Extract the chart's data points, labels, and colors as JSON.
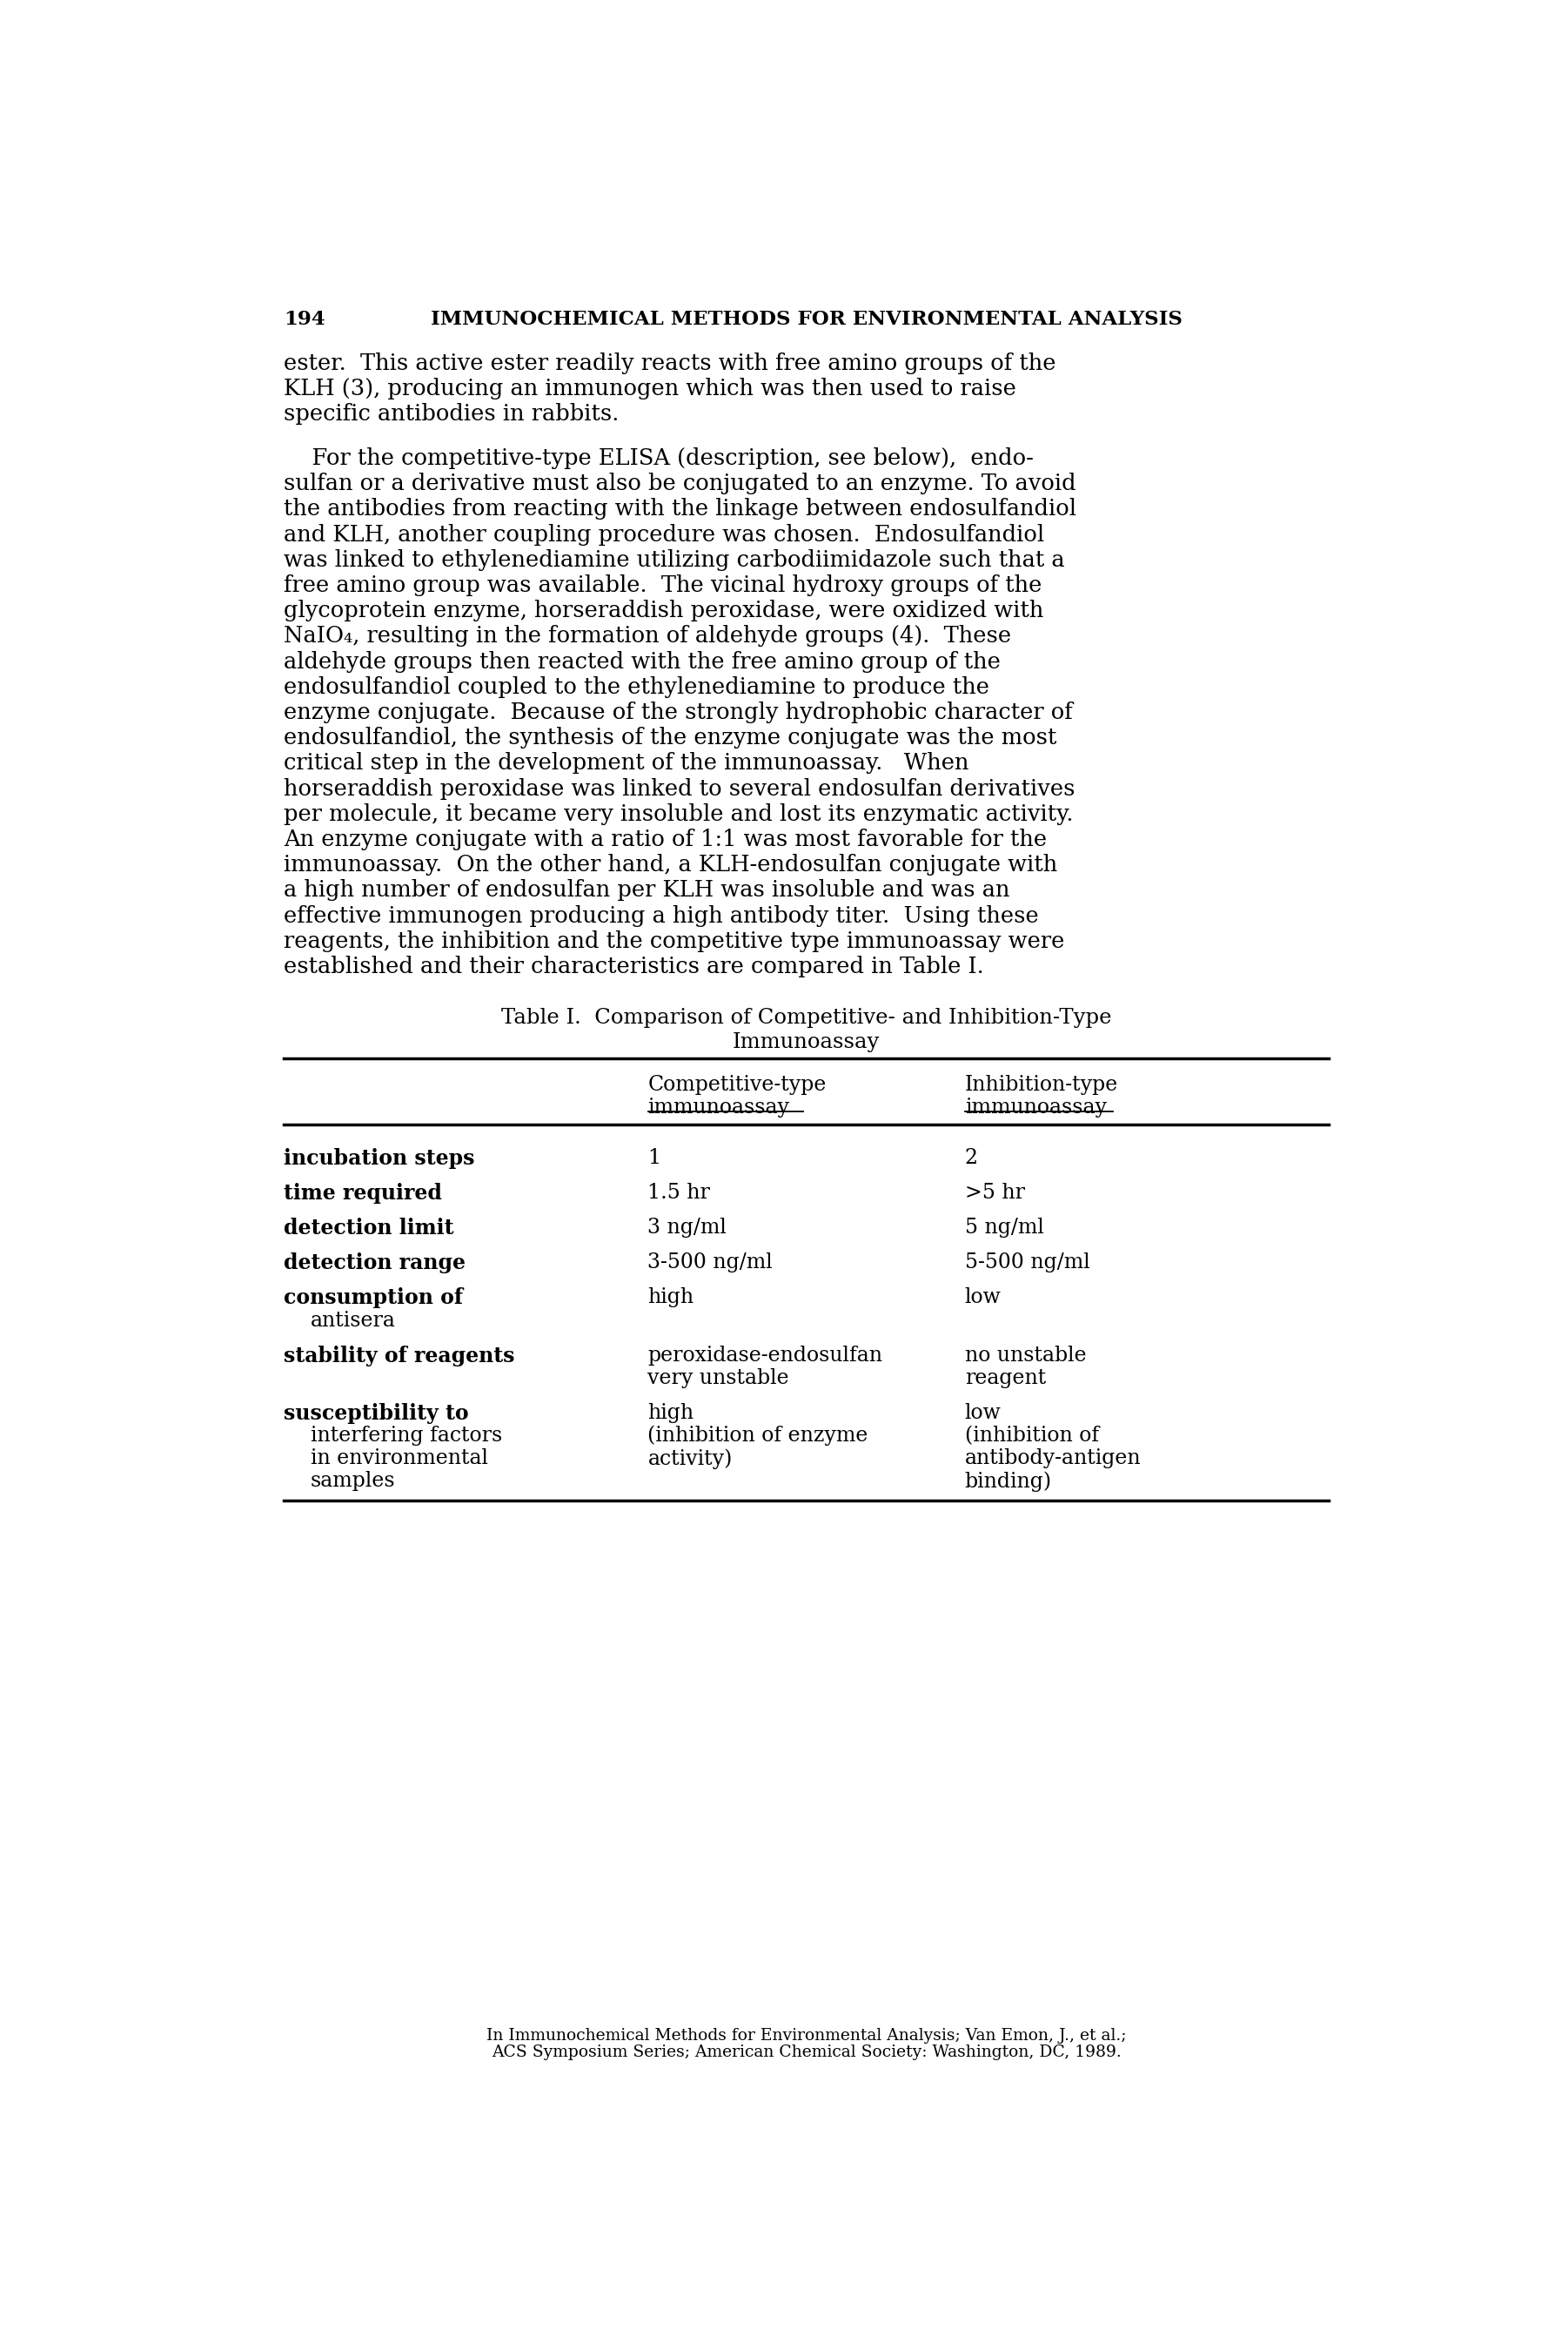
{
  "page_number": "194",
  "header": "IMMUNOCHEMICAL METHODS FOR ENVIRONMENTAL ANALYSIS",
  "p1_lines": [
    "ester.  This active ester readily reacts with free amino groups of the",
    "KLH (3), producing an immunogen which was then used to raise",
    "specific antibodies in rabbits."
  ],
  "p2_lines": [
    "    For the competitive-type ELISA (description, see below),  endo-",
    "sulfan or a derivative must also be conjugated to an enzyme. To avoid",
    "the antibodies from reacting with the linkage between endosulfandiol",
    "and KLH, another coupling procedure was chosen.  Endosulfandiol",
    "was linked to ethylenediamine utilizing carbodiimidazole such that a",
    "free amino group was available.  The vicinal hydroxy groups of the",
    "glycoprotein enzyme, horseraddish peroxidase, were oxidized with",
    "NaIO₄, resulting in the formation of aldehyde groups (4).  These",
    "aldehyde groups then reacted with the free amino group of the",
    "endosulfandiol coupled to the ethylenediamine to produce the",
    "enzyme conjugate.  Because of the strongly hydrophobic character of",
    "endosulfandiol, the synthesis of the enzyme conjugate was the most",
    "critical step in the development of the immunoassay.   When",
    "horseraddish peroxidase was linked to several endosulfan derivatives",
    "per molecule, it became very insoluble and lost its enzymatic activity.",
    "An enzyme conjugate with a ratio of 1:1 was most favorable for the",
    "immunoassay.  On the other hand, a KLH-endosulfan conjugate with",
    "a high number of endosulfan per KLH was insoluble and was an",
    "effective immunogen producing a high antibody titer.  Using these",
    "reagents, the inhibition and the competitive type immunoassay were",
    "established and their characteristics are compared in Table I."
  ],
  "table_title_line1": "Table I.  Comparison of Competitive- and Inhibition-Type",
  "table_title_line2": "Immunoassay",
  "table_rows": [
    [
      "incubation steps",
      "1",
      "2"
    ],
    [
      "time required",
      "1.5 hr",
      ">5 hr"
    ],
    [
      "detection limit",
      "3 ng/ml",
      "5 ng/ml"
    ],
    [
      "detection range",
      "3-500 ng/ml",
      "5-500 ng/ml"
    ],
    [
      "consumption of\n  antisera",
      "high",
      "low"
    ],
    [
      "stability of reagents",
      "peroxidase-endosulfan\nvery unstable",
      "no unstable\nreagent"
    ],
    [
      "susceptibility to\n  interfering factors\n  in environmental\n  samples",
      "high\n(inhibition of enzyme\nactivity)",
      "low\n(inhibition of\nantibody-antigen\nbinding)"
    ]
  ],
  "footnote_line1": "In Immunochemical Methods for Environmental Analysis; Van Emon, J., et al.;",
  "footnote_line2": "ACS Symposium Series; American Chemical Society: Washington, DC, 1989.",
  "bg_color": "#ffffff",
  "text_color": "#000000",
  "font_size_header": 16.5,
  "font_size_body": 18.5,
  "font_size_table_title": 17.5,
  "font_size_table": 17.0,
  "font_size_footnote": 13.5
}
